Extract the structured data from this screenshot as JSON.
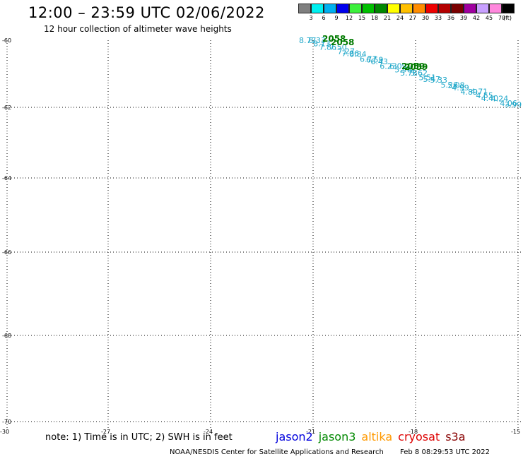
{
  "title": "12:00 – 23:59 UTC 02/06/2022",
  "subtitle": "12 hour collection of altimeter wave heights",
  "legend": {
    "unit": "(ft)",
    "bins": [
      {
        "label": "3",
        "color": "#7f7f7f"
      },
      {
        "label": "6",
        "color": "#00f0f0"
      },
      {
        "label": "9",
        "color": "#00b0f0"
      },
      {
        "label": "12",
        "color": "#0000ee"
      },
      {
        "label": "15",
        "color": "#3cf03c"
      },
      {
        "label": "18",
        "color": "#00c000"
      },
      {
        "label": "21",
        "color": "#008800"
      },
      {
        "label": "24",
        "color": "#ffff00"
      },
      {
        "label": "27",
        "color": "#ffc000"
      },
      {
        "label": "30",
        "color": "#ff8c00"
      },
      {
        "label": "33",
        "color": "#ee0000"
      },
      {
        "label": "36",
        "color": "#b40000"
      },
      {
        "label": "39",
        "color": "#7a0000"
      },
      {
        "label": "42",
        "color": "#a000a0"
      },
      {
        "label": "45",
        "color": "#c8a0ff"
      },
      {
        "label": "70",
        "color": "#ff88dd"
      },
      {
        "label": "",
        "color": "#000000"
      }
    ]
  },
  "map": {
    "lon_labels": [
      "-30",
      "-27",
      "-24",
      "-21",
      "-18",
      "-15"
    ],
    "lat_labels": [
      "-60",
      "-62",
      "-64",
      "-66",
      "-68",
      "-70"
    ],
    "track_labels": [
      "8.77",
      "8.33",
      "8.13",
      "7.86",
      "7.50",
      "7.27",
      "7.06",
      "6.84",
      "6.77",
      "6.59",
      "6.43",
      "6.23",
      "6.09",
      "5.96",
      "5.78",
      "5.62",
      "5.51",
      "5.47",
      "5.33",
      "5.26",
      "5.08",
      "4.99",
      "4.89",
      "4.71",
      "4.55",
      "4.40",
      "4.24",
      "4.06",
      "3.99"
    ],
    "pass_ids": [
      "2058",
      "2058",
      "2059",
      "2059"
    ],
    "pass_satellite": "jason3"
  },
  "note": "note: 1) Time is in UTC; 2) SWH is in feet",
  "satellites": [
    {
      "name": "jason2",
      "color": "#0000dd"
    },
    {
      "name": "jason3",
      "color": "#008800"
    },
    {
      "name": "altika",
      "color": "#ff9900"
    },
    {
      "name": "cryosat",
      "color": "#dd0000"
    },
    {
      "name": "s3a",
      "color": "#880000"
    }
  ],
  "footer": {
    "org": "NOAA/NESDIS Center for Satellite Applications and Research",
    "timestamp": "Feb 8 08:29:53 UTC 2022"
  }
}
